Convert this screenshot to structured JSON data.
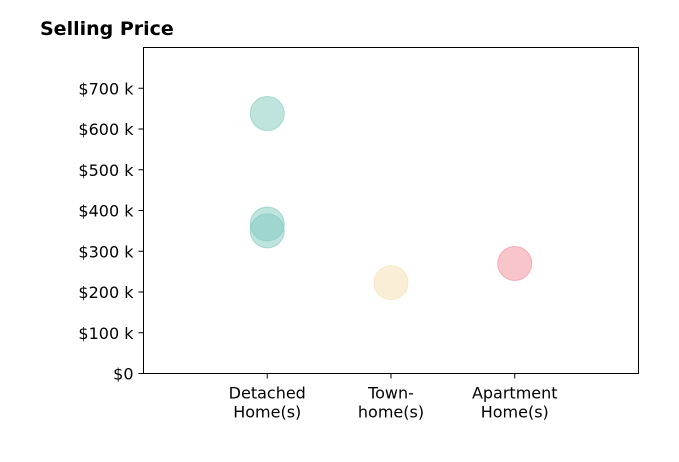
{
  "chart_data": {
    "type": "scatter",
    "title": "Selling Price",
    "xlabel": "",
    "ylabel": "",
    "categories": [
      [
        "Detached",
        "Home(s)"
      ],
      [
        "Town-",
        "home(s)"
      ],
      [
        "Apartment",
        "Home(s)"
      ]
    ],
    "xlim": [
      0,
      4
    ],
    "ylim": [
      0,
      800
    ],
    "y_ticks": [
      0,
      100,
      200,
      300,
      400,
      500,
      600,
      700
    ],
    "y_tick_labels": [
      "$0",
      "$100 k",
      "$200 k",
      "$300 k",
      "$400 k",
      "$500 k",
      "$600 k",
      "$700 k"
    ],
    "grid": false,
    "legend": "none",
    "points": [
      {
        "category": 1,
        "value": 638,
        "color": "#7fc9bd"
      },
      {
        "category": 1,
        "value": 367,
        "color": "#7fc9bd"
      },
      {
        "category": 1,
        "value": 350,
        "color": "#7fc9bd"
      },
      {
        "category": 2,
        "value": 223,
        "color": "#f5deb0"
      },
      {
        "category": 3,
        "value": 270,
        "color": "#f28c96"
      }
    ],
    "marker_opacity": 0.5
  }
}
